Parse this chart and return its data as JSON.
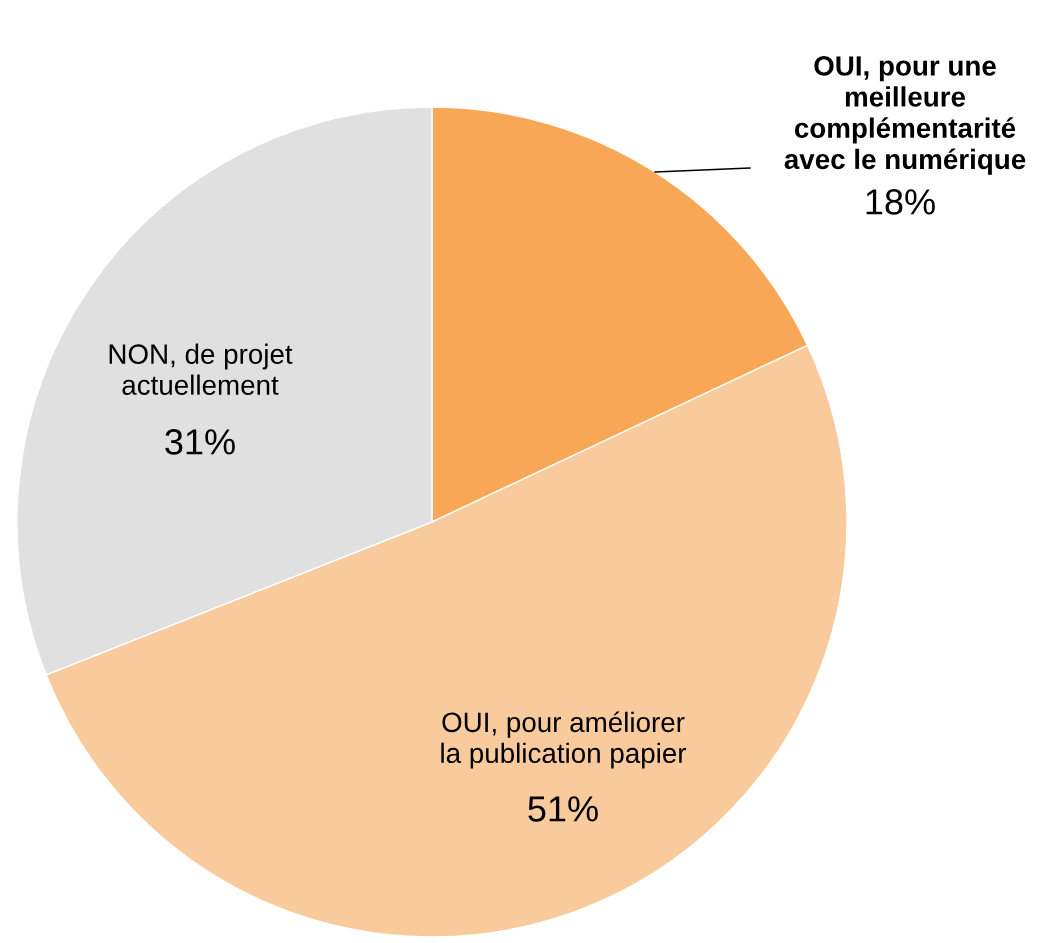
{
  "chart_data": {
    "type": "pie",
    "categories": [
      "OUI, pour une\nmeilleure\ncomplémentarité\navec le numérique",
      "OUI, pour améliorer\nla publication papier",
      "NON, de projet\nactuellement"
    ],
    "values": [
      18,
      51,
      31
    ],
    "value_labels": [
      "18%",
      "51%",
      "31%"
    ],
    "colors": [
      "#f7a756",
      "#f9cb9c",
      "#e0e0e0"
    ],
    "legend": false
  }
}
